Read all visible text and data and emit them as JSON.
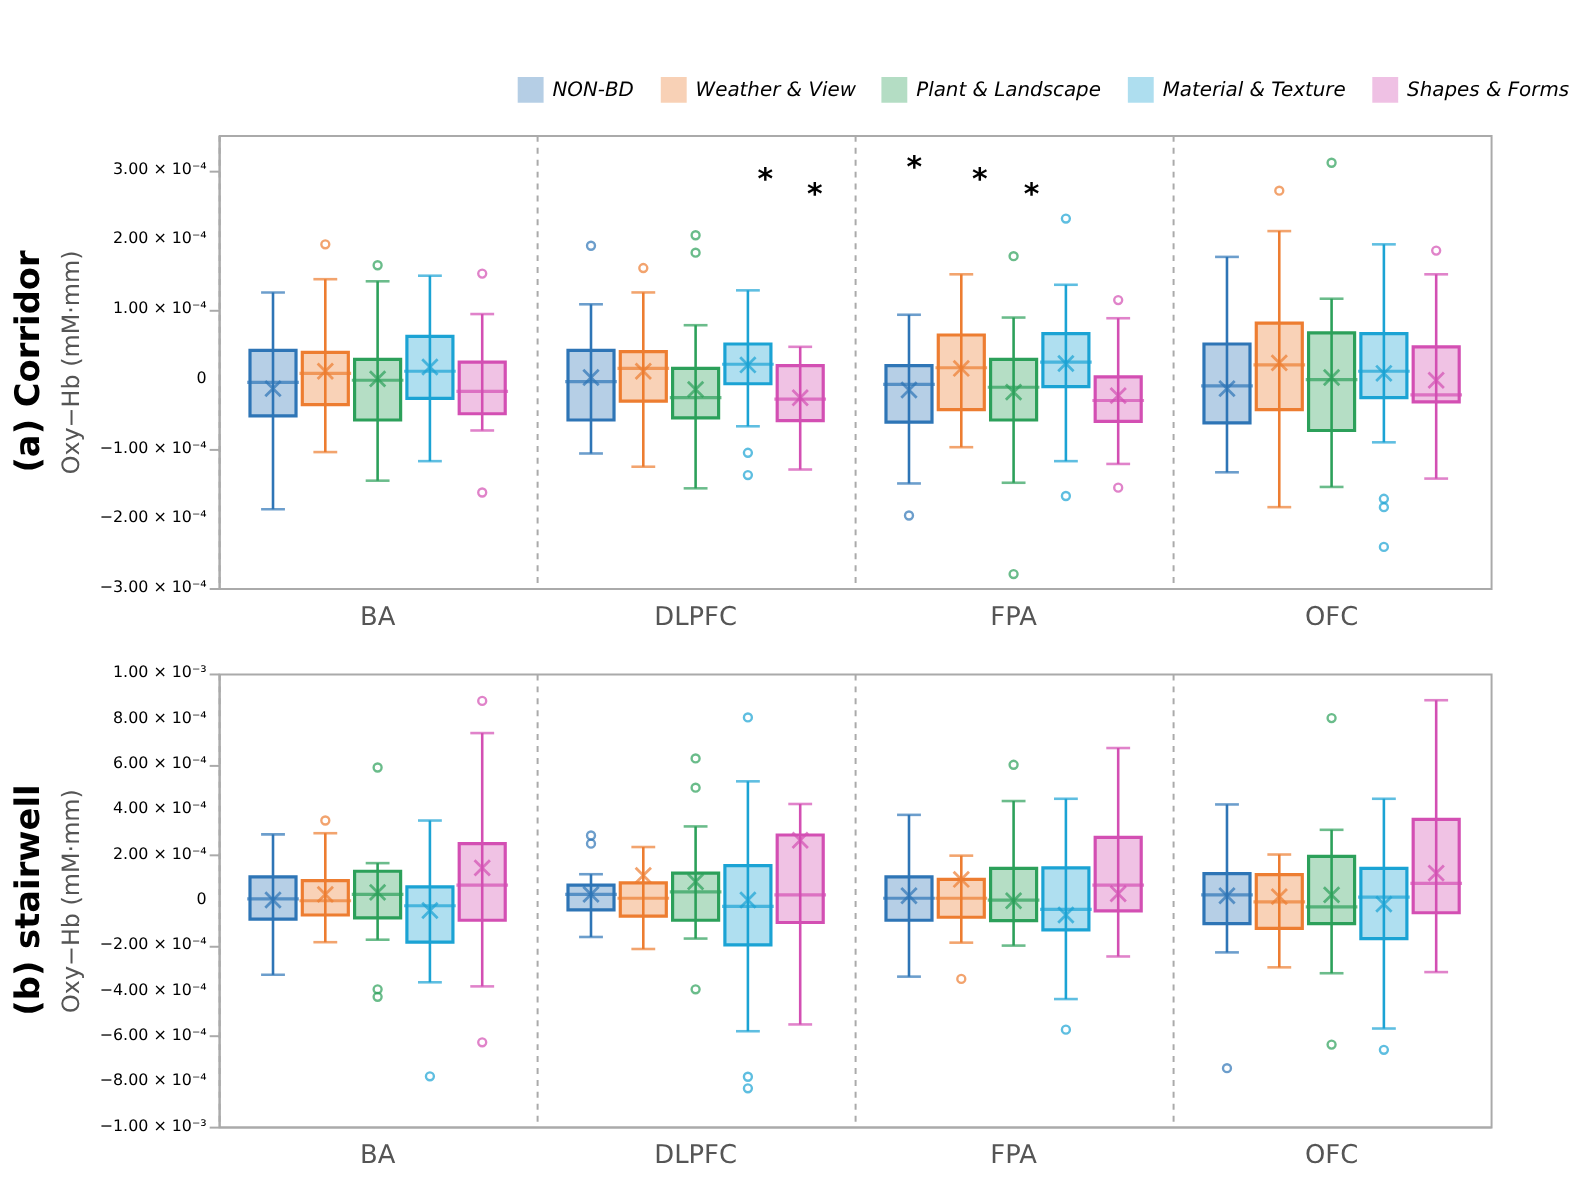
{
  "chart_data": [
    {
      "type": "box",
      "title": "(a) Corridor",
      "ylabel": "Oxy−Hb (mM·mm)",
      "categories": [
        "BA",
        "DLPFC",
        "FPA",
        "OFC"
      ],
      "ylim": [
        -0.0003,
        0.00035
      ],
      "yticks": [
        {
          "value": -0.0003,
          "label": "−3.00 × 10⁻⁴"
        },
        {
          "value": -0.0002,
          "label": "−2.00 × 10⁻⁴"
        },
        {
          "value": -0.0001,
          "label": "−1.00 × 10⁻⁴"
        },
        0,
        {
          "value": 0.0001,
          "label": "1.00 × 10⁻⁴"
        },
        {
          "value": 0.0002,
          "label": "2.00 × 10⁻⁴"
        },
        {
          "value": 0.0003,
          "label": "3.00 × 10⁻⁴"
        }
      ],
      "grid": "x",
      "legend": "top right",
      "annotations": [
        "*",
        "*",
        "*",
        "*",
        "*"
      ],
      "series": [
        {
          "name": "NON-BD",
          "color": "#2e75b6",
          "boxes": [
            {
              "low": -0.000187,
              "q1": -5.3e-05,
              "median": -5e-06,
              "q3": 4.1e-05,
              "high": 0.000124,
              "mean": -1.4e-05
            },
            {
              "low": -0.000107,
              "q1": -5.9e-05,
              "median": -4e-06,
              "q3": 4.1e-05,
              "high": 0.000107,
              "mean": 2e-06,
              "outliers": [
                0.000191
              ]
            },
            {
              "low": -0.00015,
              "q1": -6.2e-05,
              "median": -8e-06,
              "q3": 1.9e-05,
              "high": 9.2e-05,
              "mean": -1.6e-05,
              "outliers": [
                -0.000196
              ]
            },
            {
              "low": -0.000134,
              "q1": -6.3e-05,
              "median": -1e-05,
              "q3": 5e-05,
              "high": 0.000175,
              "mean": -1.4e-05
            }
          ]
        },
        {
          "name": "Weather & View",
          "color": "#ed7d31",
          "boxes": [
            {
              "low": -0.000105,
              "q1": -3.7e-05,
              "median": 8e-06,
              "q3": 3.8e-05,
              "high": 0.000143,
              "mean": 1.1e-05,
              "outliers": [
                0.000193
              ]
            },
            {
              "low": -0.000126,
              "q1": -3.2e-05,
              "median": 1.5e-05,
              "q3": 3.9e-05,
              "high": 0.000124,
              "mean": 1.1e-05,
              "outliers": [
                0.000159
              ]
            },
            {
              "low": -9.8e-05,
              "q1": -4.4e-05,
              "median": 1.6e-05,
              "q3": 6.3e-05,
              "high": 0.00015,
              "mean": 1.5e-05
            },
            {
              "low": -0.000184,
              "q1": -4.4e-05,
              "median": 2e-05,
              "q3": 8e-05,
              "high": 0.000212,
              "mean": 2.3e-05,
              "outliers": [
                0.00027
              ]
            }
          ]
        },
        {
          "name": "Plant & Landscape",
          "color": "#2ca05a",
          "boxes": [
            {
              "low": -0.000146,
              "q1": -5.9e-05,
              "median": -2e-06,
              "q3": 2.8e-05,
              "high": 0.00014,
              "mean": 0.0,
              "outliers": [
                0.000163
              ]
            },
            {
              "low": -0.000157,
              "q1": -5.6e-05,
              "median": -2.7e-05,
              "q3": 1.5e-05,
              "high": 7.7e-05,
              "mean": -1.5e-05,
              "outliers": [
                0.000206,
                0.000181
              ]
            },
            {
              "low": -0.000149,
              "q1": -5.9e-05,
              "median": -1.2e-05,
              "q3": 2.8e-05,
              "high": 8.8e-05,
              "mean": -1.9e-05,
              "outliers": [
                0.000176,
                -0.00028
              ]
            },
            {
              "low": -0.000155,
              "q1": -7.4e-05,
              "median": -1e-06,
              "q3": 6.6e-05,
              "high": 0.000115,
              "mean": 2e-06,
              "outliers": [
                0.00031
              ]
            }
          ]
        },
        {
          "name": "Material & Texture",
          "color": "#1ba3d4",
          "boxes": [
            {
              "low": -0.000118,
              "q1": -2.8e-05,
              "median": 1.1e-05,
              "q3": 6.1e-05,
              "high": 0.000148,
              "mean": 1.7e-05
            },
            {
              "low": -6.8e-05,
              "q1": -7e-06,
              "median": 2.1e-05,
              "q3": 5e-05,
              "high": 0.000127,
              "mean": 2e-05,
              "outliers": [
                -0.000106,
                -0.000138
              ]
            },
            {
              "low": -0.000118,
              "q1": -1.1e-05,
              "median": 2.4e-05,
              "q3": 6.5e-05,
              "high": 0.000135,
              "mean": 2.2e-05,
              "outliers": [
                0.00023,
                -0.000168
              ]
            },
            {
              "low": -9.1e-05,
              "q1": -2.7e-05,
              "median": 1.1e-05,
              "q3": 6.5e-05,
              "high": 0.000193,
              "mean": 8e-06,
              "outliers": [
                -0.000172,
                -0.000184,
                -0.000241
              ]
            }
          ]
        },
        {
          "name": "Shapes & Forms",
          "color": "#d34fb3",
          "boxes": [
            {
              "low": -7.4e-05,
              "q1": -5e-05,
              "median": -1.8e-05,
              "q3": 2.4e-05,
              "high": 9.3e-05,
              "outliers": [
                0.000151,
                -0.000163
              ]
            },
            {
              "low": -0.00013,
              "q1": -6e-05,
              "median": -2.9e-05,
              "q3": 1.9e-05,
              "high": 4.6e-05,
              "mean": -2.7e-05
            },
            {
              "low": -0.000122,
              "q1": -6.1e-05,
              "median": -3.1e-05,
              "q3": 3e-06,
              "high": 8.7e-05,
              "mean": -2.4e-05,
              "outliers": [
                0.000113,
                -0.000156
              ]
            },
            {
              "low": -0.000143,
              "q1": -3.3e-05,
              "median": -2.3e-05,
              "q3": 4.6e-05,
              "high": 0.00015,
              "mean": -2e-06,
              "outliers": [
                0.000184
              ]
            }
          ]
        }
      ]
    },
    {
      "type": "box",
      "title": "(b) stairwell",
      "ylabel": "Oxy−Hb (mM·mm)",
      "categories": [
        "BA",
        "DLPFC",
        "FPA",
        "OFC"
      ],
      "ylim": [
        -0.001,
        0.001
      ],
      "yticks": [
        {
          "value": -0.001,
          "label": "−1.00 × 10⁻³"
        },
        {
          "value": -0.0008,
          "label": "−8.00 × 10⁻⁴"
        },
        {
          "value": -0.0006,
          "label": "−6.00 × 10⁻⁴"
        },
        {
          "value": -0.0004,
          "label": "−4.00 × 10⁻⁴"
        },
        {
          "value": -0.0002,
          "label": "−2.00 × 10⁻⁴"
        },
        0,
        {
          "value": 0.0002,
          "label": "2.00 × 10⁻⁴"
        },
        {
          "value": 0.0004,
          "label": "4.00 × 10⁻⁴"
        },
        {
          "value": 0.0006,
          "label": "6.00 × 10⁻⁴"
        },
        {
          "value": 0.0008,
          "label": "8.00 × 10⁻⁴"
        },
        {
          "value": 0.001,
          "label": "1.00 × 10⁻³"
        }
      ],
      "grid": "x",
      "series": [
        {
          "name": "NON-BD",
          "color": "#2e75b6",
          "boxes": [
            {
              "low": -0.00033,
              "q1": -8.4e-05,
              "median": 5e-06,
              "q3": 0.000102,
              "high": 0.00029,
              "mean": 0.0
            },
            {
              "low": -0.000163,
              "q1": -4.3e-05,
              "median": 2.5e-05,
              "q3": 6.6e-05,
              "high": 0.000114,
              "mean": 2.5e-05,
              "outliers": [
                0.000285,
                0.000249
              ]
            },
            {
              "low": -0.000338,
              "q1": -8.9e-05,
              "median": 8e-06,
              "q3": 0.000102,
              "high": 0.000376,
              "mean": 1.9e-05
            },
            {
              "low": -0.000231,
              "q1": -0.000104,
              "median": 2.3e-05,
              "q3": 0.000117,
              "high": 0.000422,
              "mean": 1.9e-05,
              "outliers": [
                -0.000742
              ]
            }
          ]
        },
        {
          "name": "Weather & View",
          "color": "#ed7d31",
          "boxes": [
            {
              "low": -0.000186,
              "q1": -6.6e-05,
              "median": -3e-06,
              "q3": 8.6e-05,
              "high": 0.000295,
              "mean": 2.5e-05,
              "outliers": [
                0.000351
              ]
            },
            {
              "low": -0.000216,
              "q1": -7.1e-05,
              "median": 8e-06,
              "q3": 7.6e-05,
              "high": 0.000234,
              "mean": 0.000109
            },
            {
              "low": -0.000188,
              "q1": -7.6e-05,
              "median": 8e-06,
              "q3": 9.1e-05,
              "high": 0.000196,
              "mean": 9.1e-05,
              "outliers": [
                -0.000348
              ]
            },
            {
              "low": -0.000297,
              "q1": -0.000125,
              "median": -8e-06,
              "q3": 0.000112,
              "high": 0.000201,
              "mean": 1.5e-05
            }
          ]
        },
        {
          "name": "Plant & Landscape",
          "color": "#2ca05a",
          "boxes": [
            {
              "low": -0.000175,
              "q1": -7.9e-05,
              "median": 2.5e-05,
              "q3": 0.000127,
              "high": 0.000163,
              "mean": 3.4e-05,
              "outliers": [
                0.000585,
                -0.000394,
                -0.000427
              ]
            },
            {
              "low": -0.00017,
              "q1": -8.9e-05,
              "median": 3.6e-05,
              "q3": 0.000119,
              "high": 0.000325,
              "mean": 8.1e-05,
              "outliers": [
                0.000625,
                0.000496,
                -0.000394
              ]
            },
            {
              "low": -0.000201,
              "q1": -9.1e-05,
              "median": 0.0,
              "q3": 0.00014,
              "high": 0.000437,
              "mean": -3e-06,
              "outliers": [
                0.000597
              ]
            },
            {
              "low": -0.000323,
              "q1": -0.000104,
              "median": -3e-05,
              "q3": 0.000193,
              "high": 0.00031,
              "mean": 2.3e-05,
              "outliers": [
                0.000803,
                -0.000638
              ]
            }
          ]
        },
        {
          "name": "Material & Texture",
          "color": "#1ba3d4",
          "boxes": [
            {
              "low": -0.000363,
              "q1": -0.000186,
              "median": -2.5e-05,
              "q3": 5.8e-05,
              "high": 0.000351,
              "mean": -4.6e-05,
              "outliers": [
                -0.000778
              ]
            },
            {
              "low": -0.000579,
              "q1": -0.000198,
              "median": -2.8e-05,
              "q3": 0.000152,
              "high": 0.000524,
              "mean": 0.0,
              "outliers": [
                0.000806,
                -0.00078,
                -0.000831
              ]
            },
            {
              "low": -0.000437,
              "q1": -0.000132,
              "median": -4.1e-05,
              "q3": 0.000142,
              "high": 0.000447,
              "mean": -6.6e-05,
              "outliers": [
                -0.000572
              ]
            },
            {
              "low": -0.000567,
              "q1": -0.00017,
              "median": 1.3e-05,
              "q3": 0.00014,
              "high": 0.000447,
              "mean": -1.8e-05,
              "outliers": [
                -0.000661
              ]
            }
          ]
        },
        {
          "name": "Shapes & Forms",
          "color": "#d34fb3",
          "boxes": [
            {
              "low": -0.000381,
              "q1": -8.9e-05,
              "median": 6.6e-05,
              "q3": 0.000249,
              "high": 0.000737,
              "mean": 0.000142,
              "outliers": [
                0.000879,
                -0.000628
              ]
            },
            {
              "low": -0.000549,
              "q1": -9.9e-05,
              "median": 2.3e-05,
              "q3": 0.000287,
              "high": 0.000424,
              "mean": 0.000264
            },
            {
              "low": -0.000249,
              "q1": -4.8e-05,
              "median": 6.6e-05,
              "q3": 0.000277,
              "high": 0.000671,
              "mean": 2.8e-05
            },
            {
              "low": -0.000318,
              "q1": -5.6e-05,
              "median": 7.4e-05,
              "q3": 0.000356,
              "high": 0.000882,
              "mean": 0.000119
            }
          ]
        }
      ]
    }
  ]
}
